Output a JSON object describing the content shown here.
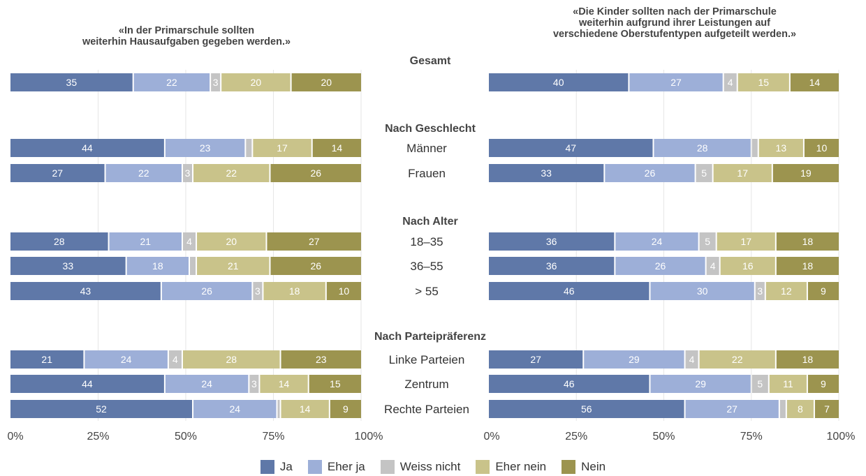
{
  "chart_data": [
    {
      "type": "bar",
      "stacked": true,
      "orientation": "horizontal",
      "title": "«In der Primarschule sollten weiterhin Hausaufgaben gegeben werden.»",
      "categories": [
        "Gesamt",
        "Männer",
        "Frauen",
        "18–35",
        "36–55",
        "> 55",
        "Linke Parteien",
        "Zentrum",
        "Rechte Parteien"
      ],
      "series": [
        {
          "name": "Ja",
          "values": [
            35,
            44,
            27,
            28,
            33,
            43,
            21,
            44,
            52
          ]
        },
        {
          "name": "Eher ja",
          "values": [
            22,
            23,
            22,
            21,
            18,
            26,
            24,
            24,
            24
          ]
        },
        {
          "name": "Weiss nicht",
          "values": [
            3,
            2,
            3,
            4,
            2,
            3,
            4,
            3,
            1
          ]
        },
        {
          "name": "Eher nein",
          "values": [
            20,
            17,
            22,
            20,
            21,
            18,
            28,
            14,
            14
          ]
        },
        {
          "name": "Nein",
          "values": [
            20,
            14,
            26,
            27,
            26,
            10,
            23,
            15,
            9
          ]
        }
      ],
      "xlim": [
        0,
        100
      ],
      "xticks": [
        "0%",
        "25%",
        "50%",
        "75%",
        "100%"
      ]
    },
    {
      "type": "bar",
      "stacked": true,
      "orientation": "horizontal",
      "title": "«Die Kinder sollten nach der Primarschule weiterhin aufgrund ihrer Leistungen auf verschiedene Oberstufentypen aufgeteilt werden.»",
      "categories": [
        "Gesamt",
        "Männer",
        "Frauen",
        "18–35",
        "36–55",
        "> 55",
        "Linke Parteien",
        "Zentrum",
        "Rechte Parteien"
      ],
      "series": [
        {
          "name": "Ja",
          "values": [
            40,
            47,
            33,
            36,
            36,
            46,
            27,
            46,
            56
          ]
        },
        {
          "name": "Eher ja",
          "values": [
            27,
            28,
            26,
            24,
            26,
            30,
            29,
            29,
            27
          ]
        },
        {
          "name": "Weiss nicht",
          "values": [
            4,
            2,
            5,
            5,
            4,
            3,
            4,
            5,
            2
          ]
        },
        {
          "name": "Eher nein",
          "values": [
            15,
            13,
            17,
            17,
            16,
            12,
            22,
            11,
            8
          ]
        },
        {
          "name": "Nein",
          "values": [
            14,
            10,
            19,
            18,
            18,
            9,
            18,
            9,
            7
          ]
        }
      ],
      "xlim": [
        0,
        100
      ],
      "xticks": [
        "0%",
        "25%",
        "50%",
        "75%",
        "100%"
      ]
    }
  ],
  "titles": {
    "left": [
      "«In der Primarschule sollten",
      "weiterhin Hausaufgaben gegeben werden.»"
    ],
    "right": [
      "«Die Kinder sollten nach der Primarschule",
      "weiterhin aufgrund ihrer Leistungen auf",
      "verschiedene Oberstufentypen aufgeteilt werden.»"
    ]
  },
  "group_headers": [
    "Gesamt",
    "Nach Geschlecht",
    "Nach Alter",
    "Nach Parteipräferenz"
  ],
  "row_labels": [
    "Männer",
    "Frauen",
    "18–35",
    "36–55",
    "> 55",
    "Linke Parteien",
    "Zentrum",
    "Rechte Parteien"
  ],
  "colors": {
    "Ja": "#5f78a8",
    "Eher ja": "#9dafd8",
    "Weiss nicht": "#c4c4c4",
    "Eher nein": "#c9c38a",
    "Nein": "#9c944f"
  },
  "legend": [
    {
      "label": "Ja",
      "color": "#5f78a8"
    },
    {
      "label": "Eher ja",
      "color": "#9dafd8"
    },
    {
      "label": "Weiss nicht",
      "color": "#c4c4c4"
    },
    {
      "label": "Eher nein",
      "color": "#c9c38a"
    },
    {
      "label": "Nein",
      "color": "#9c944f"
    }
  ]
}
